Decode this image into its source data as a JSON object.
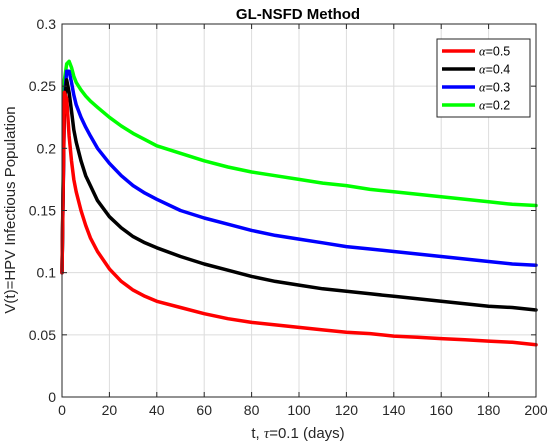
{
  "chart_data": {
    "type": "line",
    "title": "GL-NSFD Method",
    "xlabel_prefix": "t, ",
    "xlabel_symbol": "τ",
    "xlabel_suffix": "=0.1 (days)",
    "ylabel": "V(t)=HPV Infectious Population",
    "xlim": [
      0,
      200
    ],
    "ylim": [
      0,
      0.3
    ],
    "xticks": [
      0,
      20,
      40,
      60,
      80,
      100,
      120,
      140,
      160,
      180,
      200
    ],
    "yticks": [
      0,
      0.05,
      0.1,
      0.15,
      0.2,
      0.25,
      0.3
    ],
    "ytick_labels": [
      "0",
      "0.05",
      "0.1",
      "0.15",
      "0.2",
      "0.25",
      "0.3"
    ],
    "grid": true,
    "legend_position": "top-right",
    "legend_symbol": "α",
    "series": [
      {
        "name": "=0.5",
        "color": "#ff0000",
        "x": [
          0,
          1,
          2,
          3,
          4,
          5,
          6,
          8,
          10,
          12,
          15,
          20,
          25,
          30,
          35,
          40,
          50,
          60,
          70,
          80,
          90,
          100,
          110,
          120,
          130,
          140,
          150,
          160,
          170,
          180,
          190,
          200
        ],
        "y": [
          0.1,
          0.245,
          0.24,
          0.21,
          0.19,
          0.175,
          0.165,
          0.15,
          0.138,
          0.128,
          0.117,
          0.103,
          0.093,
          0.086,
          0.081,
          0.077,
          0.072,
          0.067,
          0.063,
          0.06,
          0.058,
          0.056,
          0.054,
          0.052,
          0.051,
          0.049,
          0.048,
          0.047,
          0.046,
          0.045,
          0.044,
          0.042
        ]
      },
      {
        "name": "=0.4",
        "color": "#000000",
        "x": [
          0,
          1,
          2,
          3,
          4,
          5,
          6,
          8,
          10,
          12,
          15,
          20,
          25,
          30,
          35,
          40,
          50,
          60,
          70,
          80,
          90,
          100,
          110,
          120,
          130,
          140,
          150,
          160,
          170,
          180,
          190,
          200
        ],
        "y": [
          0.1,
          0.235,
          0.255,
          0.245,
          0.23,
          0.215,
          0.205,
          0.19,
          0.178,
          0.17,
          0.158,
          0.145,
          0.136,
          0.129,
          0.124,
          0.12,
          0.113,
          0.107,
          0.102,
          0.097,
          0.093,
          0.09,
          0.087,
          0.085,
          0.083,
          0.081,
          0.079,
          0.077,
          0.075,
          0.073,
          0.072,
          0.07
        ]
      },
      {
        "name": "=0.3",
        "color": "#0000ff",
        "x": [
          0,
          1,
          2,
          3,
          4,
          5,
          6,
          8,
          10,
          12,
          15,
          20,
          25,
          30,
          35,
          40,
          50,
          60,
          70,
          80,
          90,
          100,
          110,
          120,
          130,
          140,
          150,
          160,
          170,
          180,
          190,
          200
        ],
        "y": [
          0.1,
          0.24,
          0.262,
          0.262,
          0.253,
          0.243,
          0.235,
          0.225,
          0.217,
          0.21,
          0.2,
          0.188,
          0.178,
          0.17,
          0.164,
          0.159,
          0.15,
          0.144,
          0.139,
          0.134,
          0.13,
          0.127,
          0.124,
          0.121,
          0.119,
          0.117,
          0.115,
          0.113,
          0.111,
          0.109,
          0.107,
          0.106
        ]
      },
      {
        "name": "=0.2",
        "color": "#00ff00",
        "x": [
          0,
          1,
          2,
          3,
          4,
          5,
          6,
          8,
          10,
          12,
          15,
          20,
          25,
          30,
          35,
          40,
          50,
          60,
          70,
          80,
          90,
          100,
          110,
          120,
          130,
          140,
          150,
          160,
          170,
          180,
          190,
          200
        ],
        "y": [
          0.1,
          0.255,
          0.268,
          0.27,
          0.265,
          0.258,
          0.253,
          0.247,
          0.242,
          0.238,
          0.233,
          0.225,
          0.218,
          0.212,
          0.207,
          0.202,
          0.196,
          0.19,
          0.185,
          0.181,
          0.178,
          0.175,
          0.172,
          0.17,
          0.167,
          0.165,
          0.163,
          0.161,
          0.159,
          0.157,
          0.155,
          0.154
        ]
      }
    ]
  }
}
